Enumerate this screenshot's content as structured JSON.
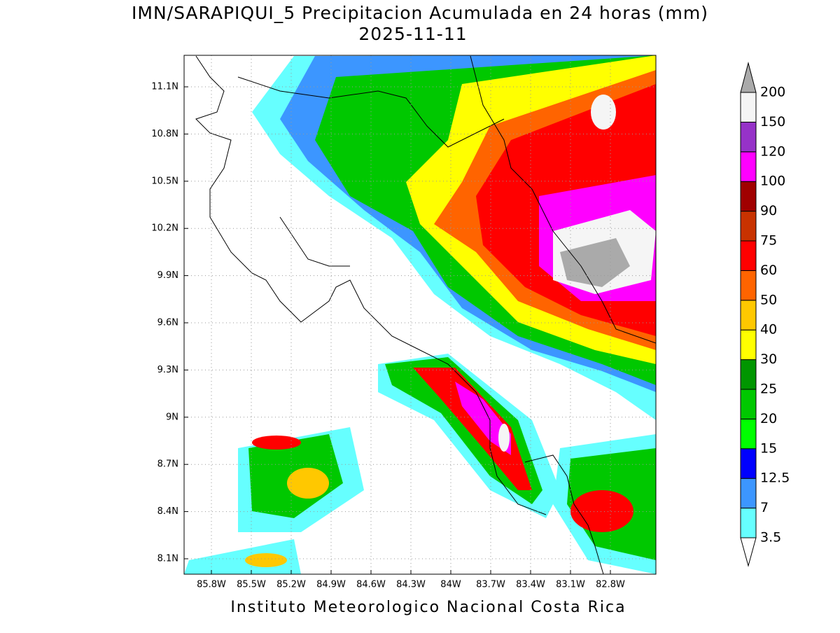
{
  "map": {
    "title": "IMN/SARAPIQUI_5 Precipitacion Acumulada en 24 horas (mm)",
    "subtitle": "2025-11-11",
    "footer": "Instituto Meteorologico Nacional Costa Rica",
    "xtick_labels": [
      "85.8W",
      "85.5W",
      "85.2W",
      "84.9W",
      "84.6W",
      "84.3W",
      "84W",
      "83.7W",
      "83.4W",
      "83.1W",
      "82.8W"
    ],
    "ytick_labels": [
      "11.1N",
      "10.8N",
      "10.5N",
      "10.2N",
      "9.9N",
      "9.6N",
      "9.3N",
      "9N",
      "8.7N",
      "8.4N",
      "8.1N"
    ],
    "colorbar": {
      "levels": [
        3.5,
        7,
        12.5,
        15,
        20,
        25,
        30,
        40,
        50,
        60,
        75,
        90,
        100,
        120,
        150,
        200
      ],
      "colors": [
        "#66ffff",
        "#3c96ff",
        "#0000ff",
        "#00ff00",
        "#00c800",
        "#009600",
        "#ffff00",
        "#ffc800",
        "#ff6400",
        "#ff0000",
        "#c83200",
        "#a00000",
        "#ff00ff",
        "#9632c8",
        "#f5f5f5"
      ],
      "under_color": "#ffffff",
      "over_color": "#aaaaaa"
    }
  }
}
